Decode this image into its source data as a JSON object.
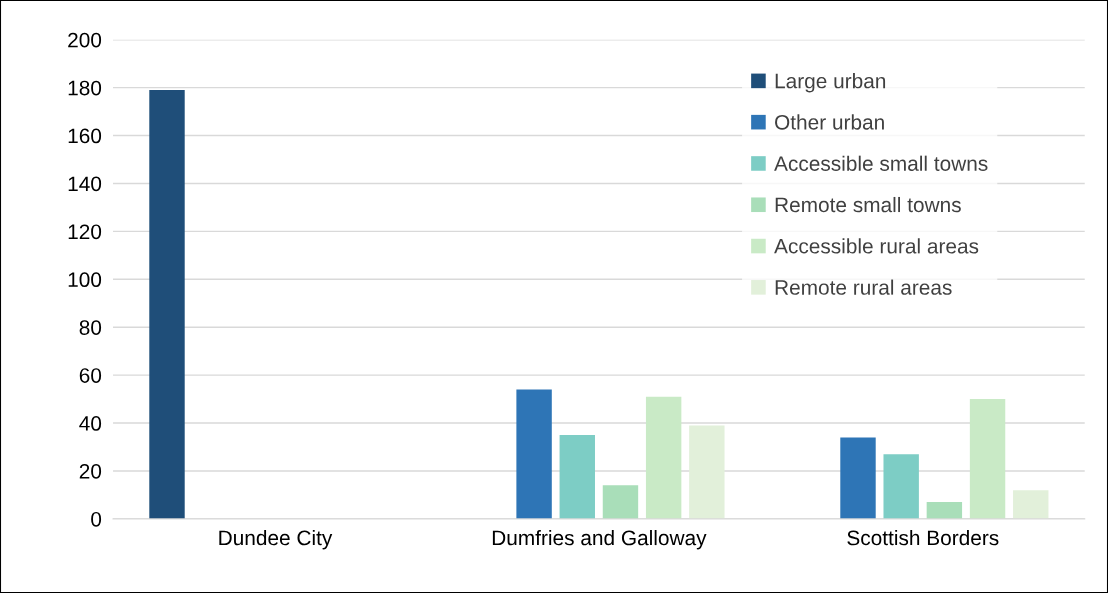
{
  "chart_data": {
    "type": "bar",
    "categories": [
      "Dundee City",
      "Dumfries and Galloway",
      "Scottish Borders"
    ],
    "series": [
      {
        "name": "Large urban",
        "color": "#1f4e79",
        "values": [
          179,
          null,
          null
        ]
      },
      {
        "name": "Other urban",
        "color": "#2e75b6",
        "values": [
          null,
          54,
          34
        ]
      },
      {
        "name": "Accessible small towns",
        "color": "#7dcdc5",
        "values": [
          null,
          35,
          27
        ]
      },
      {
        "name": "Remote small towns",
        "color": "#a9deb9",
        "values": [
          null,
          14,
          7
        ]
      },
      {
        "name": "Accessible rural areas",
        "color": "#c9eac6",
        "values": [
          null,
          51,
          50
        ]
      },
      {
        "name": "Remote rural areas",
        "color": "#e2f0da",
        "values": [
          null,
          39,
          12
        ]
      }
    ],
    "ylim": [
      0,
      200
    ],
    "yticks": [
      0,
      20,
      40,
      60,
      80,
      100,
      120,
      140,
      160,
      180,
      200
    ],
    "grid": "y",
    "legend": "top right"
  }
}
